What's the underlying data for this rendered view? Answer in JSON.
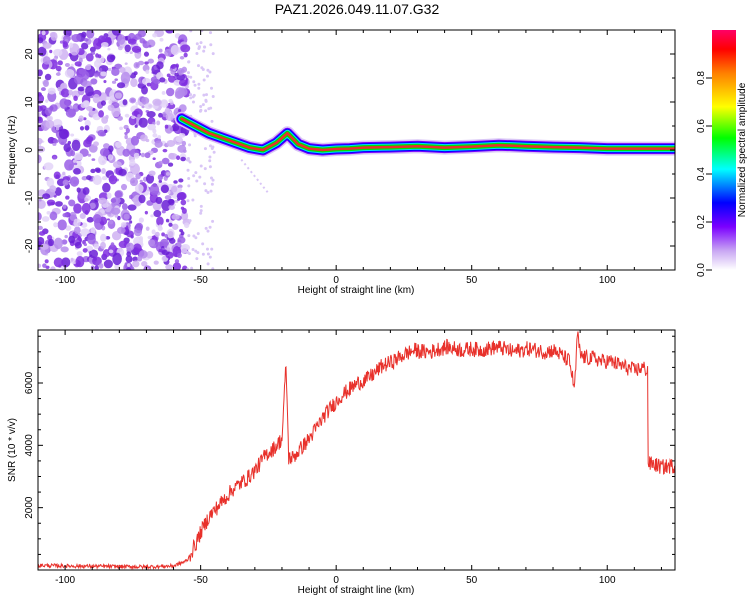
{
  "figure_title": "PAZ1.2026.049.11.07.G32",
  "colors": {
    "snr_line": "#e8312b",
    "stripe_high": "#e8312b",
    "scatter": "#8a2be2",
    "axis": "#000000"
  },
  "chart_data": [
    {
      "type": "heatmap",
      "title": "PAZ1.2026.049.11.07.G32",
      "xlabel": "Height of straight line (km)",
      "ylabel": "Frequency (Hz)",
      "xlim": [
        -110,
        125
      ],
      "ylim": [
        -25,
        25
      ],
      "xticks": [
        -100,
        -50,
        0,
        50,
        100
      ],
      "yticks": [
        -20,
        -10,
        0,
        10,
        20
      ],
      "colorbar": {
        "label": "Normalized spectral amplitude",
        "range": [
          0,
          1
        ],
        "ticks": [
          "0.0",
          "0.2",
          "0.4",
          "0.6",
          "0.8"
        ]
      },
      "noise_region_x": [
        -110,
        -55
      ],
      "ridge": {
        "x": [
          -57,
          -52,
          -47,
          -42,
          -37,
          -32,
          -27,
          -22,
          -18,
          -14,
          -10,
          -5,
          0,
          5,
          10,
          20,
          30,
          40,
          50,
          60,
          70,
          80,
          90,
          100,
          110,
          120,
          125
        ],
        "y": [
          6.5,
          5,
          3.5,
          2.5,
          1.5,
          0.5,
          0,
          1.5,
          3.5,
          1.2,
          0.3,
          0,
          0.2,
          0.3,
          0.5,
          0.6,
          0.8,
          0.5,
          0.7,
          1,
          0.8,
          0.6,
          0.5,
          0.3,
          0.3,
          0.3,
          0.3
        ]
      }
    },
    {
      "type": "line",
      "xlabel": "Height of straight line (km)",
      "ylabel": "SNR (10 * v/v)",
      "xlim": [
        -110,
        125
      ],
      "ylim": [
        0,
        7700
      ],
      "xticks": [
        -100,
        -50,
        0,
        50,
        100
      ],
      "yticks": [
        2000,
        4000,
        6000
      ],
      "series": [
        {
          "name": "SNR",
          "x": [
            -110,
            -100,
            -90,
            -80,
            -70,
            -60,
            -55,
            -52,
            -50,
            -47,
            -44,
            -41,
            -38,
            -35,
            -32,
            -29,
            -26,
            -23,
            -20,
            -18.5,
            -17.5,
            -16,
            -13,
            -10,
            -7,
            -4,
            -1,
            2,
            5,
            8,
            11,
            14,
            17,
            20,
            23,
            26,
            29,
            32,
            35,
            38,
            41,
            44,
            47,
            50,
            53,
            56,
            59,
            62,
            65,
            68,
            71,
            74,
            77,
            80,
            83,
            86,
            88,
            89,
            90,
            92,
            95,
            98,
            101,
            104,
            107,
            110,
            113,
            114.9,
            115.1,
            117,
            120,
            125
          ],
          "values": [
            150,
            130,
            120,
            110,
            100,
            130,
            300,
            800,
            1200,
            1700,
            2000,
            2300,
            2600,
            2800,
            3000,
            3300,
            3700,
            3900,
            4200,
            6600,
            3600,
            3600,
            3900,
            4200,
            4600,
            5000,
            5300,
            5600,
            5800,
            6000,
            6100,
            6300,
            6550,
            6650,
            6800,
            6950,
            7050,
            7000,
            7000,
            7100,
            7150,
            7100,
            7050,
            7100,
            7050,
            7100,
            7150,
            7100,
            7000,
            7050,
            7100,
            7050,
            7000,
            7050,
            6900,
            6700,
            5800,
            7600,
            6900,
            6800,
            6800,
            6700,
            6700,
            6600,
            6500,
            6400,
            6500,
            6400,
            3400,
            3400,
            3300,
            3350
          ]
        }
      ]
    }
  ]
}
